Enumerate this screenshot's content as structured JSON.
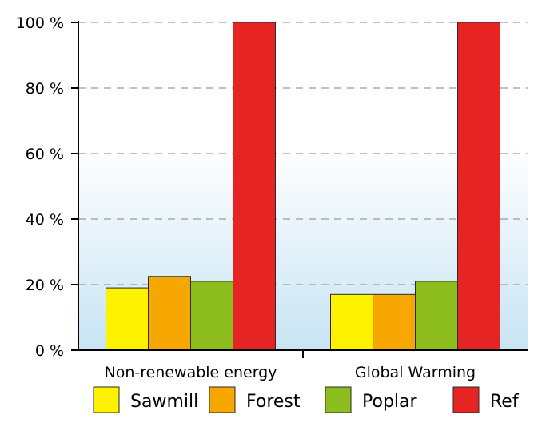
{
  "chart_data": {
    "type": "bar",
    "title": "",
    "xlabel": "",
    "ylabel": "",
    "categories": [
      "Non-renewable energy",
      "Global Warming"
    ],
    "series": [
      {
        "name": "Sawmill",
        "color": "#FFF200",
        "values": [
          19,
          17
        ]
      },
      {
        "name": "Forest",
        "color": "#F7A800",
        "values": [
          22.5,
          17
        ]
      },
      {
        "name": "Poplar",
        "color": "#8DBE1E",
        "values": [
          21,
          21
        ]
      },
      {
        "name": "Ref",
        "color": "#E62424",
        "values": [
          100,
          100
        ]
      }
    ],
    "ylim": [
      0,
      100
    ],
    "yticks": [
      0,
      20,
      40,
      60,
      80,
      100
    ],
    "ytick_labels": [
      "0 %",
      "20 %",
      "40 %",
      "60 %",
      "80 %",
      "100 %"
    ],
    "grid": true,
    "grid_style": "dashed",
    "legend_position": "bottom",
    "background": "gradient light blue"
  }
}
